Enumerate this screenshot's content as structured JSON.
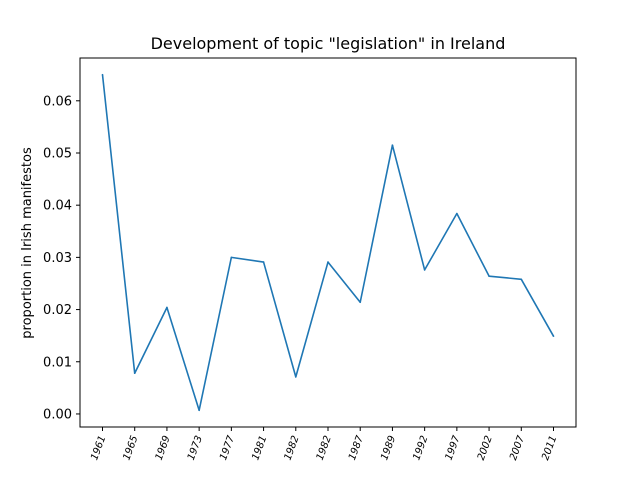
{
  "chart_data": {
    "type": "line",
    "title": "Development of topic \"legislation\" in Ireland",
    "xlabel": "",
    "ylabel": "proportion in Irish manifestos",
    "categories": [
      "1961",
      "1965",
      "1969",
      "1973",
      "1977",
      "1981",
      "1982",
      "1982",
      "1987",
      "1989",
      "1992",
      "1997",
      "2002",
      "2007",
      "2011"
    ],
    "values": [
      0.065,
      0.0078,
      0.0204,
      0.0007,
      0.03,
      0.0291,
      0.0071,
      0.0291,
      0.0214,
      0.0515,
      0.0276,
      0.0384,
      0.0264,
      0.0258,
      0.0149
    ],
    "ylim": [
      -0.0025,
      0.0682
    ],
    "yticks": [
      0.0,
      0.01,
      0.02,
      0.03,
      0.04,
      0.05,
      0.06
    ],
    "ytick_labels": [
      "0.00",
      "0.01",
      "0.02",
      "0.03",
      "0.04",
      "0.05",
      "0.06"
    ],
    "grid": false,
    "line_color": "#1f77b4"
  }
}
